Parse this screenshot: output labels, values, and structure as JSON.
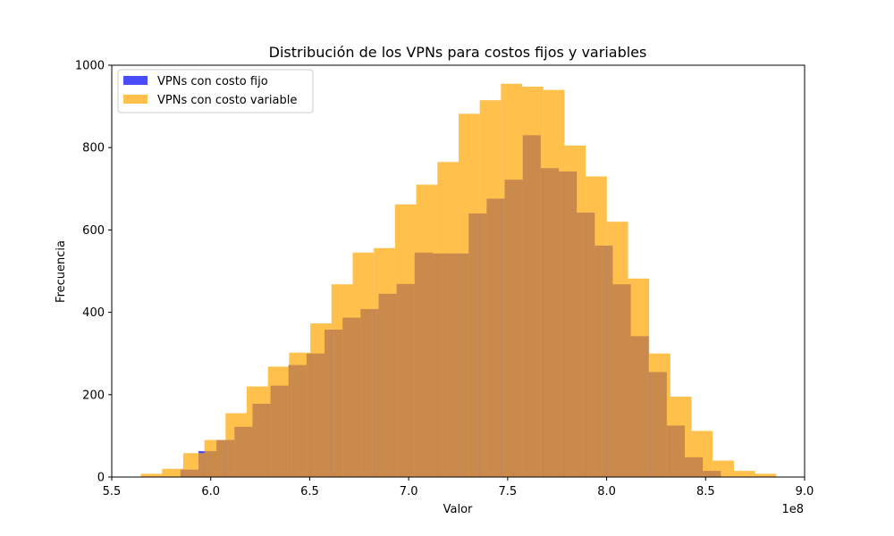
{
  "chart_data": {
    "type": "bar",
    "title": "Distribución de los VPNs para costos fijos y variables",
    "xlabel": "Valor",
    "ylabel": "Frecuencia",
    "x_offset_label": "1e8",
    "xlim": [
      5.5,
      9.0
    ],
    "ylim": [
      0,
      1000
    ],
    "x_ticks": [
      5.5,
      6.0,
      6.5,
      7.0,
      7.5,
      8.0,
      8.5,
      9.0
    ],
    "x_tick_labels": [
      "5.5",
      "6.0",
      "6.5",
      "7.0",
      "7.5",
      "8.0",
      "8.5",
      "9.0"
    ],
    "y_ticks": [
      0,
      200,
      400,
      600,
      800,
      1000
    ],
    "y_tick_labels": [
      "0",
      "200",
      "400",
      "600",
      "800",
      "1000"
    ],
    "legend": {
      "placement": "top-left"
    },
    "series": [
      {
        "name": "VPNs con costo fijo",
        "color": "#0000ff",
        "opacity": 0.7,
        "bin_edges": [
          5.847,
          5.938,
          6.029,
          6.12,
          6.211,
          6.302,
          6.393,
          6.484,
          6.575,
          6.666,
          6.757,
          6.848,
          6.939,
          7.03,
          7.121,
          7.212,
          7.303,
          7.394,
          7.485,
          7.576,
          7.667,
          7.758,
          7.849,
          7.94,
          8.031,
          8.122,
          8.213,
          8.304,
          8.395,
          8.486,
          8.577
        ],
        "values": [
          18,
          63,
          90,
          122,
          178,
          222,
          272,
          300,
          358,
          387,
          408,
          445,
          469,
          545,
          543,
          543,
          640,
          676,
          722,
          830,
          750,
          742,
          642,
          562,
          468,
          342,
          255,
          125,
          48,
          15
        ]
      },
      {
        "name": "VPNs con costo variable",
        "color": "#ffa500",
        "opacity": 0.7,
        "bin_edges": [
          5.647,
          5.754,
          5.861,
          5.968,
          6.075,
          6.182,
          6.289,
          6.396,
          6.503,
          6.61,
          6.717,
          6.824,
          6.931,
          7.038,
          7.145,
          7.252,
          7.359,
          7.466,
          7.573,
          7.68,
          7.787,
          7.894,
          8.001,
          8.108,
          8.215,
          8.322,
          8.429,
          8.536,
          8.643,
          8.75,
          8.857
        ],
        "values": [
          8,
          20,
          58,
          90,
          155,
          220,
          268,
          302,
          373,
          468,
          545,
          556,
          662,
          710,
          765,
          882,
          915,
          955,
          948,
          940,
          805,
          730,
          620,
          482,
          300,
          195,
          112,
          40,
          15,
          8
        ]
      }
    ]
  }
}
